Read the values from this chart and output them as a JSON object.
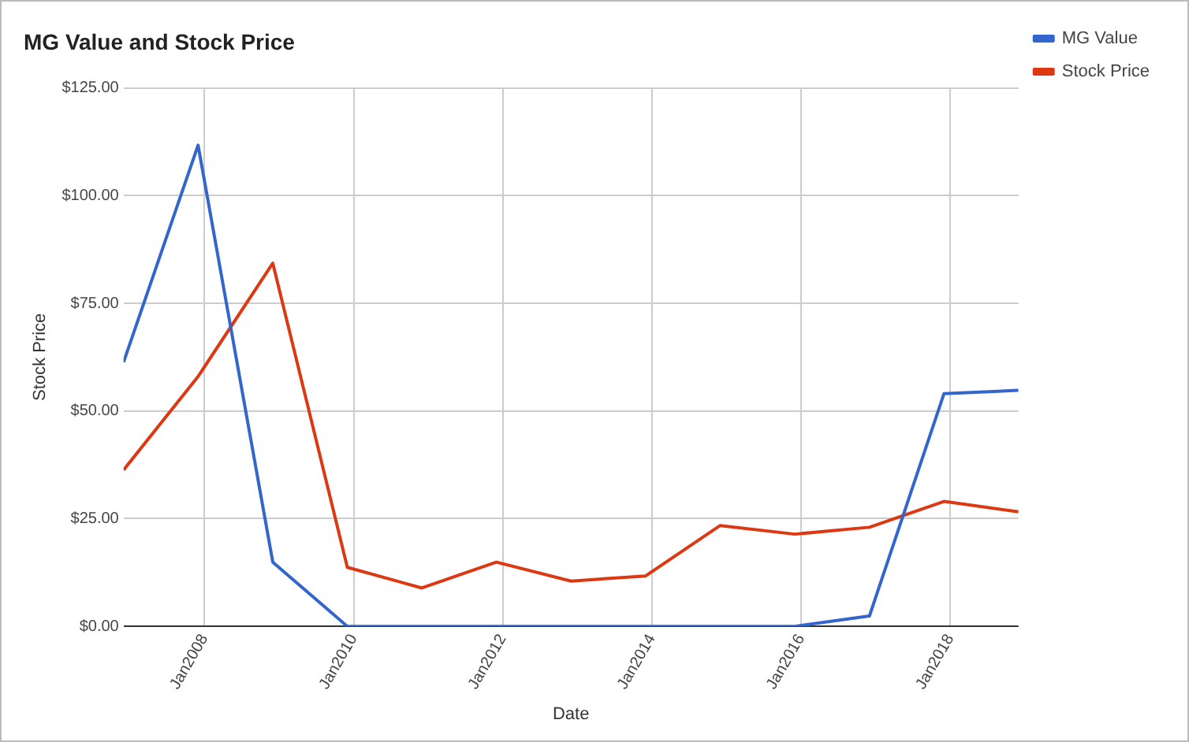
{
  "chart_data": {
    "type": "line",
    "title": "MG Value and Stock Price",
    "xlabel": "Date",
    "ylabel": "Stock Price",
    "x": [
      "2006-12",
      "2007-12",
      "2008-12",
      "2009-12",
      "2010-12",
      "2011-12",
      "2012-12",
      "2013-12",
      "2014-12",
      "2015-12",
      "2016-12",
      "2017-12",
      "2018-12"
    ],
    "series": [
      {
        "name": "MG Value",
        "color": "#3366cc",
        "values": [
          61.3,
          111.7,
          14.9,
          0,
          0,
          0,
          0,
          0,
          0,
          0,
          2.4,
          54,
          54.8
        ]
      },
      {
        "name": "Stock Price",
        "color": "#dc3912",
        "values": [
          36.3,
          58,
          84.3,
          13.7,
          8.9,
          14.9,
          10.5,
          11.7,
          23.4,
          21.4,
          23,
          29,
          26.6
        ]
      }
    ],
    "xlim": [
      "2006-12",
      "2018-12"
    ],
    "xticks": [
      {
        "value": "2008-01",
        "label": "Jan2008"
      },
      {
        "value": "2010-01",
        "label": "Jan2010"
      },
      {
        "value": "2012-01",
        "label": "Jan2012"
      },
      {
        "value": "2014-01",
        "label": "Jan2014"
      },
      {
        "value": "2016-01",
        "label": "Jan2016"
      },
      {
        "value": "2018-01",
        "label": "Jan2018"
      }
    ],
    "ylim": [
      0,
      125
    ],
    "yticks": [
      {
        "value": 0,
        "label": "$0.00"
      },
      {
        "value": 25,
        "label": "$25.00"
      },
      {
        "value": 50,
        "label": "$50.00"
      },
      {
        "value": 75,
        "label": "$75.00"
      },
      {
        "value": 100,
        "label": "$100.00"
      },
      {
        "value": 125,
        "label": "$125.00"
      }
    ],
    "grid": true,
    "legend": "top right",
    "marker": "none",
    "line_style": "solid"
  }
}
